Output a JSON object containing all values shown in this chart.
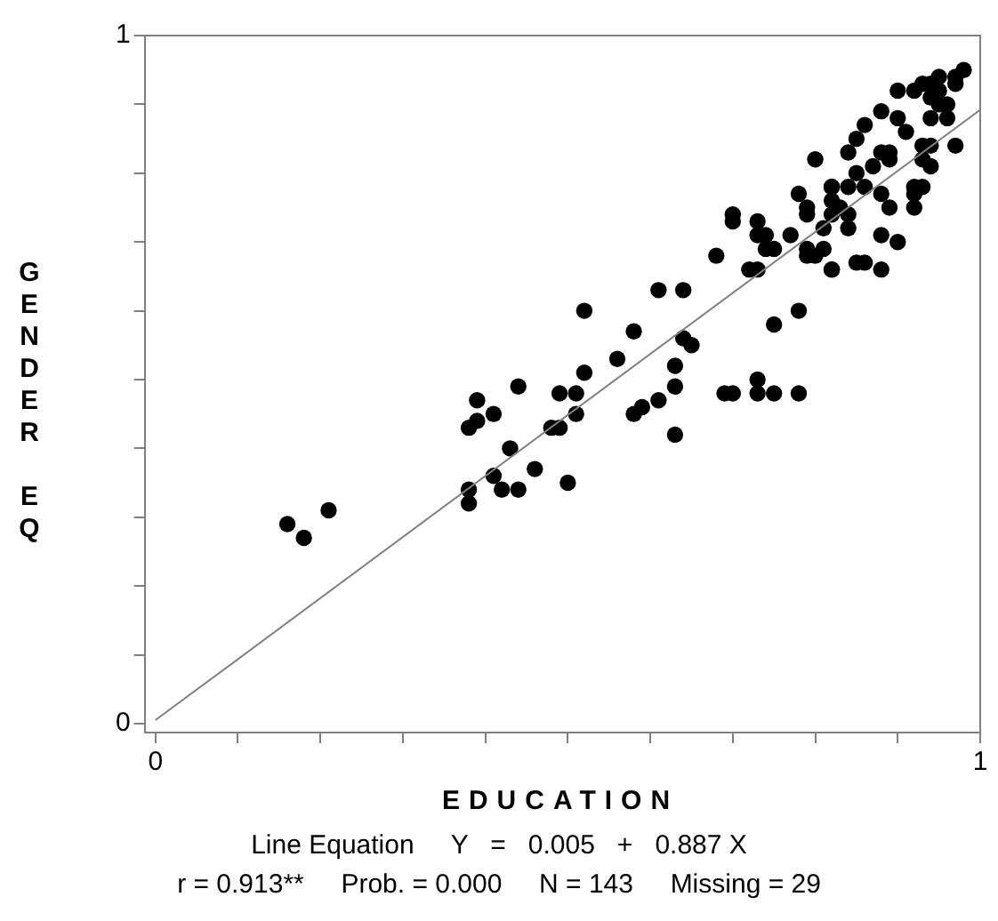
{
  "chart_data": {
    "type": "scatter",
    "xlabel": "EDUCATION",
    "ylabel": "GENDER EQ",
    "xlim": [
      -0.013,
      1
    ],
    "ylim": [
      -0.013,
      1
    ],
    "xticks": [
      0,
      {
        "value": 0.1,
        "label": null
      },
      {
        "value": 0.2,
        "label": null
      },
      {
        "value": 0.3,
        "label": null
      },
      {
        "value": 0.4,
        "label": null
      },
      {
        "value": 0.5,
        "label": null
      },
      {
        "value": 0.6,
        "label": null
      },
      {
        "value": 0.7,
        "label": null
      },
      {
        "value": 0.8,
        "label": null
      },
      {
        "value": 0.9,
        "label": null
      },
      1
    ],
    "yticks": [
      0,
      {
        "value": 0.1,
        "label": null
      },
      {
        "value": 0.2,
        "label": null
      },
      {
        "value": 0.3,
        "label": null
      },
      {
        "value": 0.4,
        "label": null
      },
      {
        "value": 0.5,
        "label": null
      },
      {
        "value": 0.6,
        "label": null
      },
      {
        "value": 0.7,
        "label": null
      },
      {
        "value": 0.8,
        "label": null
      },
      {
        "value": 0.9,
        "label": null
      },
      1
    ],
    "grid": false,
    "legend": false,
    "series": [
      {
        "marker": "circle",
        "color": "#000000",
        "x": [
          0.16,
          0.18,
          0.21,
          0.52,
          0.58,
          0.56,
          0.52,
          0.44,
          0.49,
          0.51,
          0.39,
          0.41,
          0.39,
          0.38,
          0.51,
          0.58,
          0.48,
          0.49,
          0.43,
          0.46,
          0.41,
          0.38,
          0.38,
          0.42,
          0.44,
          0.5,
          0.78,
          0.82,
          0.7,
          0.7,
          0.73,
          0.79,
          0.73,
          0.74,
          0.74,
          0.75,
          0.68,
          0.79,
          0.81,
          0.82,
          0.85,
          0.72,
          0.73,
          0.61,
          0.64,
          0.78,
          0.75,
          0.64,
          0.65,
          0.63,
          0.63,
          0.61,
          0.59,
          0.63,
          0.69,
          0.7,
          0.73,
          0.73,
          0.75,
          0.78,
          0.98,
          0.97,
          0.95,
          0.94,
          0.93,
          0.92,
          0.9,
          0.94,
          0.95,
          0.97,
          0.95,
          0.96,
          0.94,
          0.96,
          0.88,
          0.9,
          0.91,
          0.86,
          0.85,
          0.94,
          0.97,
          0.93,
          0.88,
          0.89,
          0.93,
          0.94,
          0.89,
          0.87,
          0.84,
          0.8,
          0.85,
          0.82,
          0.84,
          0.86,
          0.88,
          0.83,
          0.82,
          0.92,
          0.93,
          0.92,
          0.79,
          0.82,
          0.84,
          0.89,
          0.92,
          0.88,
          0.84,
          0.81,
          0.77,
          0.79,
          0.8,
          0.9,
          0.82,
          0.86,
          0.88
        ],
        "values": [
          0.29,
          0.27,
          0.31,
          0.6,
          0.57,
          0.53,
          0.51,
          0.49,
          0.48,
          0.48,
          0.47,
          0.45,
          0.44,
          0.43,
          0.45,
          0.45,
          0.43,
          0.43,
          0.4,
          0.37,
          0.36,
          0.34,
          0.32,
          0.34,
          0.34,
          0.35,
          0.77,
          0.78,
          0.74,
          0.73,
          0.73,
          0.74,
          0.71,
          0.71,
          0.69,
          0.69,
          0.68,
          0.68,
          0.69,
          0.66,
          0.67,
          0.66,
          0.66,
          0.63,
          0.63,
          0.6,
          0.58,
          0.56,
          0.55,
          0.52,
          0.49,
          0.47,
          0.46,
          0.42,
          0.48,
          0.48,
          0.5,
          0.48,
          0.48,
          0.48,
          0.95,
          0.94,
          0.94,
          0.93,
          0.93,
          0.92,
          0.92,
          0.91,
          0.92,
          0.93,
          0.9,
          0.9,
          0.88,
          0.88,
          0.89,
          0.88,
          0.86,
          0.87,
          0.85,
          0.84,
          0.84,
          0.84,
          0.83,
          0.83,
          0.82,
          0.81,
          0.82,
          0.81,
          0.83,
          0.82,
          0.8,
          0.78,
          0.78,
          0.78,
          0.77,
          0.75,
          0.76,
          0.78,
          0.78,
          0.77,
          0.75,
          0.74,
          0.74,
          0.75,
          0.75,
          0.71,
          0.72,
          0.72,
          0.71,
          0.69,
          0.68,
          0.7,
          0.66,
          0.67,
          0.66
        ]
      },
      {
        "type": "line",
        "marker": "none",
        "color": "#808080",
        "x": [
          0,
          1
        ],
        "values": [
          0.005,
          0.892
        ]
      }
    ],
    "annotations": [
      "Line Equation     Y   =   0.005   +   0.887 X",
      "r = 0.913**     Prob. = 0.000     N = 143     Missing = 29"
    ]
  }
}
